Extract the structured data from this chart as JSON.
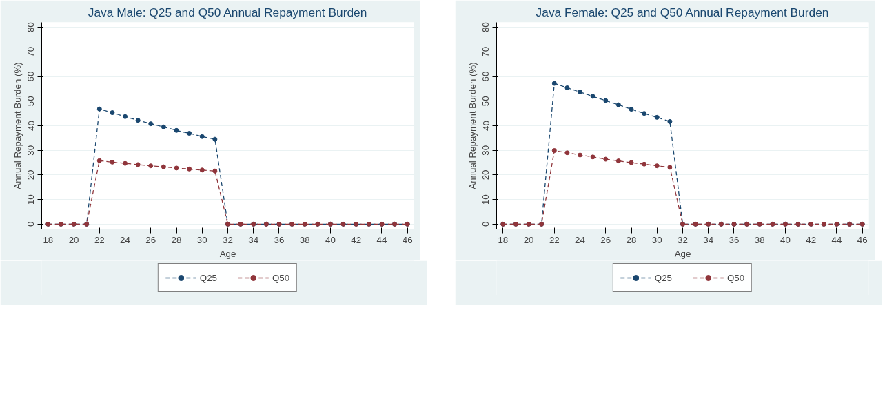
{
  "chart_data": [
    {
      "type": "line",
      "title": "Java Male: Q25 and Q50 Annual Repayment Burden",
      "xlabel": "Age",
      "ylabel": "Annual Repayment Burden (%)",
      "x": [
        18,
        19,
        20,
        21,
        22,
        23,
        24,
        25,
        26,
        27,
        28,
        29,
        30,
        31,
        32,
        33,
        34,
        35,
        36,
        37,
        38,
        39,
        40,
        41,
        42,
        43,
        44,
        45,
        46
      ],
      "series": [
        {
          "name": "Q25",
          "color": "#1a476f",
          "values": [
            0,
            0,
            0,
            0,
            46.8,
            45.3,
            43.7,
            42.2,
            40.8,
            39.5,
            38.1,
            36.9,
            35.6,
            34.5,
            0,
            0,
            0,
            0,
            0,
            0,
            0,
            0,
            0,
            0,
            0,
            0,
            0,
            0,
            0
          ]
        },
        {
          "name": "Q50",
          "color": "#90353b",
          "values": [
            0,
            0,
            0,
            0,
            25.8,
            25.2,
            24.7,
            24.2,
            23.7,
            23.3,
            22.8,
            22.4,
            22.0,
            21.6,
            0,
            0,
            0,
            0,
            0,
            0,
            0,
            0,
            0,
            0,
            0,
            0,
            0,
            0,
            0
          ]
        }
      ],
      "xlim": [
        17.5,
        46.5
      ],
      "xticks": [
        18,
        20,
        22,
        24,
        26,
        28,
        30,
        32,
        34,
        36,
        38,
        40,
        42,
        44,
        46
      ],
      "ylim": [
        -2,
        82
      ],
      "yticks": [
        0,
        10,
        20,
        30,
        40,
        50,
        60,
        70,
        80
      ],
      "grid": "y",
      "legend": "bottom",
      "marker": "circle",
      "line_style": "dashed"
    },
    {
      "type": "line",
      "title": "Java Female: Q25 and Q50 Annual Repayment Burden",
      "xlabel": "Age",
      "ylabel": "Annual Repayment Burden (%)",
      "x": [
        18,
        19,
        20,
        21,
        22,
        23,
        24,
        25,
        26,
        27,
        28,
        29,
        30,
        31,
        32,
        33,
        34,
        35,
        36,
        37,
        38,
        39,
        40,
        41,
        42,
        43,
        44,
        45,
        46
      ],
      "series": [
        {
          "name": "Q25",
          "color": "#1a476f",
          "values": [
            0,
            0,
            0,
            0,
            57.2,
            55.4,
            53.7,
            51.9,
            50.2,
            48.5,
            46.7,
            45.0,
            43.4,
            41.7,
            0,
            0,
            0,
            0,
            0,
            0,
            0,
            0,
            0,
            0,
            0,
            0,
            0,
            0,
            0
          ]
        },
        {
          "name": "Q50",
          "color": "#90353b",
          "values": [
            0,
            0,
            0,
            0,
            29.9,
            29.0,
            28.1,
            27.3,
            26.4,
            25.7,
            25.0,
            24.4,
            23.7,
            23.1,
            0,
            0,
            0,
            0,
            0,
            0,
            0,
            0,
            0,
            0,
            0,
            0,
            0,
            0,
            0
          ]
        }
      ],
      "xlim": [
        17.5,
        46.5
      ],
      "xticks": [
        18,
        20,
        22,
        24,
        26,
        28,
        30,
        32,
        34,
        36,
        38,
        40,
        42,
        44,
        46
      ],
      "ylim": [
        -2,
        82
      ],
      "yticks": [
        0,
        10,
        20,
        30,
        40,
        50,
        60,
        70,
        80
      ],
      "grid": "y",
      "legend": "bottom",
      "marker": "circle",
      "line_style": "dashed"
    }
  ]
}
